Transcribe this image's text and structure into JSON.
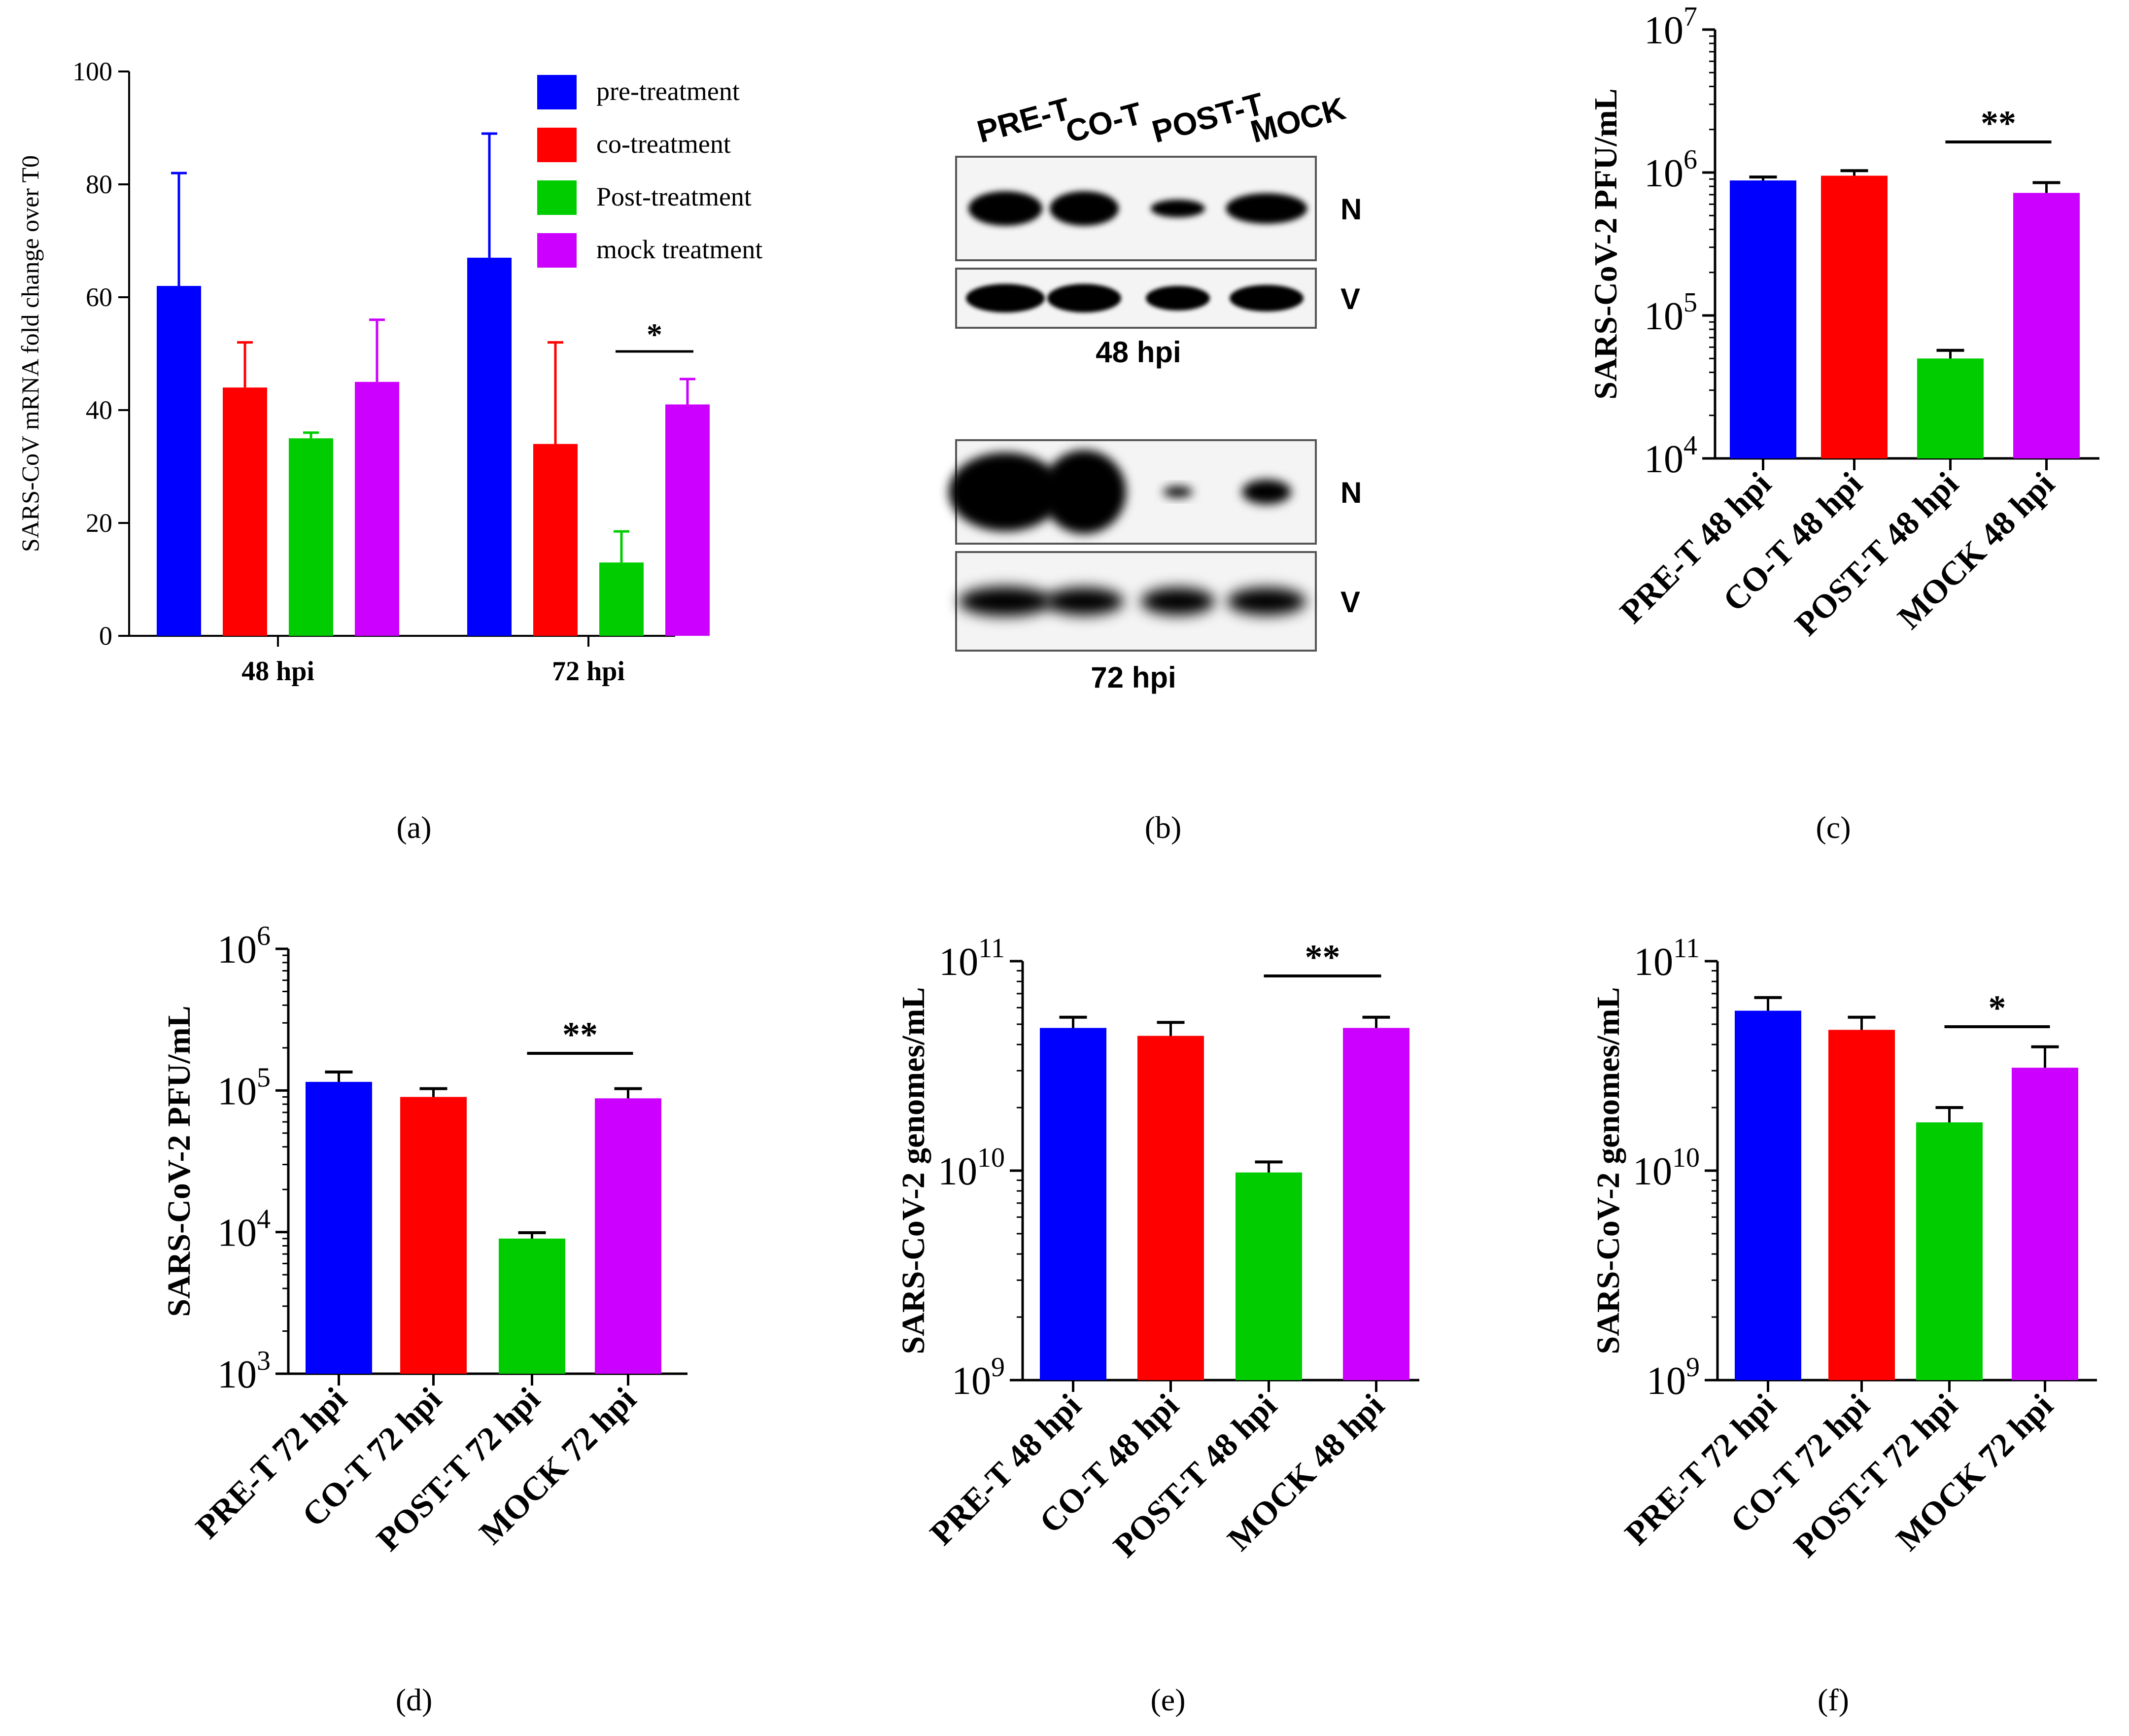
{
  "panel_labels": [
    "(a)",
    "(b)",
    "(c)",
    "(d)",
    "(e)",
    "(f)"
  ],
  "colors": {
    "pre": "#0000FF",
    "co": "#FF0000",
    "post": "#00CC00",
    "mock": "#CC00FF",
    "axis": "#000000"
  },
  "blot": {
    "lanes": [
      "PRE-T",
      "CO-T",
      "POST-T",
      "MOCK"
    ],
    "row_labels": [
      "N",
      "V",
      "N",
      "V"
    ],
    "time_labels": [
      "48 hpi",
      "72 hpi"
    ]
  },
  "chart_data": [
    {
      "id": "a",
      "type": "bar",
      "ylabel": "SARS-CoV mRNA fold change over T0",
      "ylim": [
        0,
        100
      ],
      "yticks": [
        0,
        20,
        40,
        60,
        80,
        100
      ],
      "categories": [
        "48 hpi",
        "72 hpi"
      ],
      "series": [
        {
          "name": "pre-treatment",
          "values": [
            62,
            67
          ],
          "errors": [
            20,
            22
          ]
        },
        {
          "name": "co-treatment",
          "values": [
            44,
            34
          ],
          "errors": [
            8,
            18
          ]
        },
        {
          "name": "Post-treatment",
          "values": [
            35,
            13
          ],
          "errors": [
            1,
            5.5
          ]
        },
        {
          "name": "mock treatment",
          "values": [
            45,
            41
          ],
          "errors": [
            11,
            4.5
          ]
        }
      ],
      "legend": "top-right",
      "significance": [
        {
          "label": "*",
          "between": [
            "Post-treatment",
            "mock treatment"
          ],
          "category": "72 hpi"
        }
      ]
    },
    {
      "id": "c",
      "type": "bar",
      "scale": "log",
      "ylabel": "SARS-CoV-2 PFU/mL",
      "ylim": [
        10000,
        10000000
      ],
      "yticks": [
        {
          "base": "10",
          "exp": "4"
        },
        {
          "base": "10",
          "exp": "5"
        },
        {
          "base": "10",
          "exp": "6"
        },
        {
          "base": "10",
          "exp": "7"
        }
      ],
      "categories": [
        "PRE-T 48 hpi",
        "CO-T 48 hpi",
        "POST-T 48 hpi",
        "MOCK 48 hpi"
      ],
      "values": [
        880000,
        950000,
        50000,
        720000
      ],
      "errors": [
        50000,
        80000,
        7000,
        130000
      ],
      "significance": [
        {
          "label": "**",
          "between": [
            "POST-T 48 hpi",
            "MOCK 48 hpi"
          ]
        }
      ]
    },
    {
      "id": "d",
      "type": "bar",
      "scale": "log",
      "ylabel": "SARS-CoV-2 PFU/mL",
      "ylim": [
        1000,
        1000000
      ],
      "yticks": [
        {
          "base": "10",
          "exp": "3"
        },
        {
          "base": "10",
          "exp": "4"
        },
        {
          "base": "10",
          "exp": "5"
        },
        {
          "base": "10",
          "exp": "6"
        }
      ],
      "categories": [
        "PRE-T 72 hpi",
        "CO-T 72 hpi",
        "POST-T 72 hpi",
        "MOCK 72 hpi"
      ],
      "values": [
        115000,
        90000,
        9000,
        88000
      ],
      "errors": [
        20000,
        13000,
        900,
        15000
      ],
      "significance": [
        {
          "label": "**",
          "between": [
            "POST-T 72 hpi",
            "MOCK 72 hpi"
          ]
        }
      ]
    },
    {
      "id": "e",
      "type": "bar",
      "scale": "log",
      "ylabel": "SARS-CoV-2 genomes/mL",
      "ylim": [
        1000000000,
        100000000000
      ],
      "yticks": [
        {
          "base": "10",
          "exp": "9"
        },
        {
          "base": "10",
          "exp": "10"
        },
        {
          "base": "10",
          "exp": "11"
        }
      ],
      "categories": [
        "PRE-T 48 hpi",
        "CO-T 48 hpi",
        "POST-T 48 hpi",
        "MOCK 48 hpi"
      ],
      "values": [
        48000000000,
        44000000000,
        9800000000,
        48000000000
      ],
      "errors": [
        6000000000,
        7000000000,
        1200000000,
        6000000000
      ],
      "significance": [
        {
          "label": "**",
          "between": [
            "POST-T 48 hpi",
            "MOCK 48 hpi"
          ]
        }
      ]
    },
    {
      "id": "f",
      "type": "bar",
      "scale": "log",
      "ylabel": "SARS-CoV-2 genomes/mL",
      "ylim": [
        1000000000,
        100000000000
      ],
      "yticks": [
        {
          "base": "10",
          "exp": "9"
        },
        {
          "base": "10",
          "exp": "10"
        },
        {
          "base": "10",
          "exp": "11"
        }
      ],
      "categories": [
        "PRE-T 72 hpi",
        "CO-T 72 hpi",
        "POST-T 72 hpi",
        "MOCK 72 hpi"
      ],
      "values": [
        58000000000,
        47000000000,
        17000000000,
        31000000000
      ],
      "errors": [
        9000000000,
        7000000000,
        3000000000,
        8000000000
      ],
      "significance": [
        {
          "label": "*",
          "between": [
            "POST-T 72 hpi",
            "MOCK 72 hpi"
          ]
        }
      ]
    }
  ]
}
